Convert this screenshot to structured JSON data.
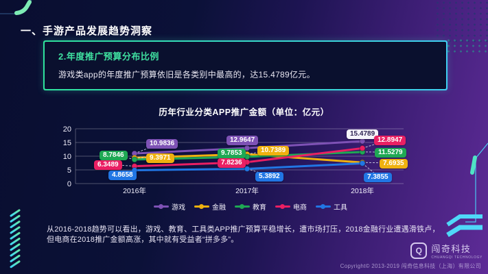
{
  "page": {
    "header_title": "一、手游产品发展趋势洞察",
    "footer": {
      "copyright": "Copyright© 2013-2019 闯奇信息科技（上海）有限公司",
      "logo_text": "闯奇科技",
      "logo_subtext": "CHUANGQI TECHNOLOGY",
      "logo_letter": "Q"
    }
  },
  "callout": {
    "title": "2.年度推广预算分布比例",
    "description": "游戏类app的年度推广预算依旧是各类别中最高的，达15.4789亿元。"
  },
  "note": {
    "line1": "从2016-2018趋势可以看出，游戏、教育、工具类APP推广预算平稳增长，遭市场打压，2018金融行业遭遇滑铁卢，",
    "line2": "但电商在2018推广金额高涨，其中就有受益者“拼多多”。"
  },
  "chart_data": {
    "type": "line",
    "title": "历年行业分类APP推广金额（单位：亿元）",
    "categories": [
      "2016年",
      "2017年",
      "2018年"
    ],
    "series": [
      {
        "name": "游戏",
        "color": "#7e52b5",
        "values": [
          10.9836,
          12.9647,
          15.4789
        ]
      },
      {
        "name": "金融",
        "color": "#efb10f",
        "values": [
          9.3971,
          10.7389,
          7.6935
        ]
      },
      {
        "name": "教育",
        "color": "#1fa854",
        "values": [
          8.7846,
          9.7853,
          11.5279
        ]
      },
      {
        "name": "电商",
        "color": "#ea1f63",
        "values": [
          6.3489,
          7.8236,
          12.8947
        ]
      },
      {
        "name": "工具",
        "color": "#2176e4",
        "values": [
          4.8658,
          5.3892,
          7.3855
        ]
      }
    ],
    "ylim": [
      0,
      20
    ],
    "yticks": [
      0,
      5,
      10,
      15,
      20
    ],
    "grid": true,
    "legend_position": "bottom",
    "highlight": {
      "series": "游戏",
      "category": "2018年",
      "value": 15.4789,
      "label_style": "white"
    }
  },
  "colors": {
    "accent_green": "#3fe0a0",
    "accent_cyan": "#3fd0f2",
    "background_left": "#0a0f33",
    "background_right": "#5e2b97",
    "highlight_label_bg": "#f5f3fa"
  }
}
